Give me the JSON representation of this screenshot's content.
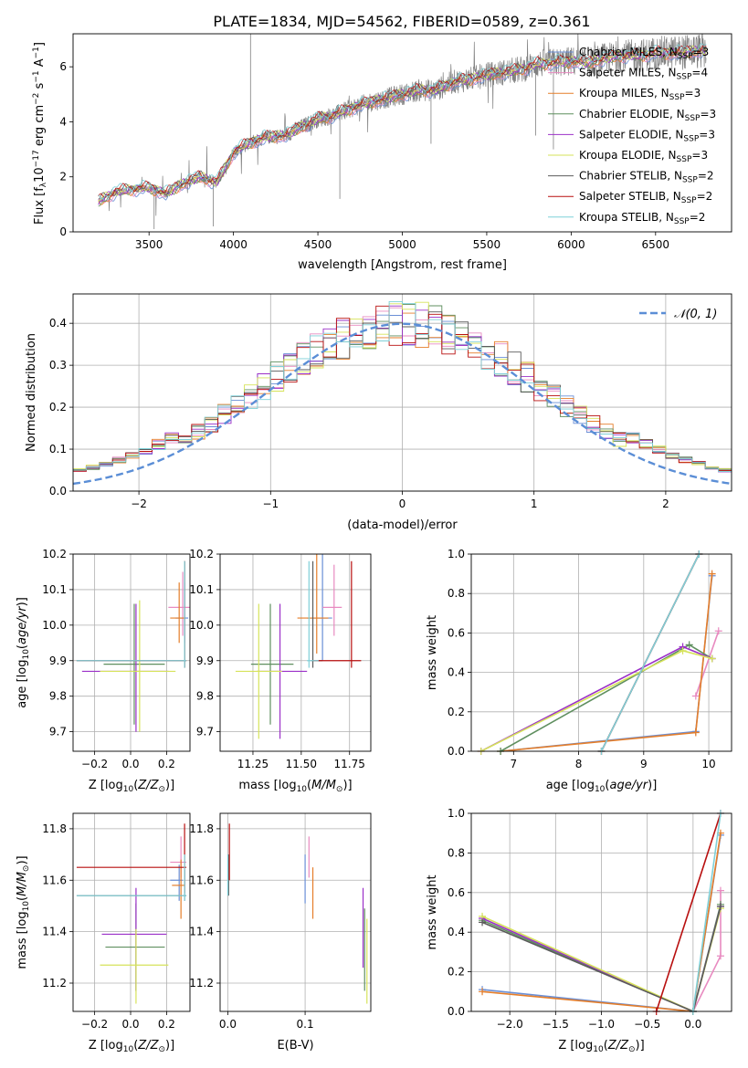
{
  "figure_title": "PLATE=1834, MJD=54562, FIBERID=0589, z=0.361",
  "colors": {
    "Chabrier MILES": "#6a8fd6",
    "Salpeter MILES": "#e88ac0",
    "Kroupa MILES": "#e57e2a",
    "Chabrier ELODIE": "#5f8f5f",
    "Salpeter ELODIE": "#9b30c8",
    "Kroupa ELODIE": "#d6e35a",
    "Chabrier STELIB": "#5b5b5b",
    "Salpeter STELIB": "#b80f0f",
    "Kroupa STELIB": "#7fd0d8",
    "data": "#808080",
    "gaussian": "#5b8ed6",
    "grid": "#b0b0b0"
  },
  "chart_data": [
    {
      "id": "spectrum",
      "type": "line",
      "xlabel": "wavelength [Angstrom, rest frame]",
      "ylabel": "Flux [f_λ10^-17 erg cm^-2 s^-1 A^-1]",
      "xlim": [
        3050,
        6950
      ],
      "ylim": [
        0,
        7.2
      ],
      "xticks": [
        3500,
        4000,
        4500,
        5000,
        5500,
        6000,
        6500
      ],
      "yticks": [
        0,
        2,
        4,
        6
      ],
      "legend_position": "top-right",
      "legend": [
        {
          "label": "Chabrier MILES, N",
          "sub": "SSP",
          "tail": "=3"
        },
        {
          "label": "Salpeter MILES, N",
          "sub": "SSP",
          "tail": "=4"
        },
        {
          "label": "Kroupa MILES, N",
          "sub": "SSP",
          "tail": "=3"
        },
        {
          "label": "Chabrier ELODIE, N",
          "sub": "SSP",
          "tail": "=3"
        },
        {
          "label": "Salpeter ELODIE, N",
          "sub": "SSP",
          "tail": "=3"
        },
        {
          "label": "Kroupa ELODIE, N",
          "sub": "SSP",
          "tail": "=3"
        },
        {
          "label": "Chabrier STELIB, N",
          "sub": "SSP",
          "tail": "=2"
        },
        {
          "label": "Salpeter STELIB, N",
          "sub": "SSP",
          "tail": "=2"
        },
        {
          "label": "Kroupa STELIB, N",
          "sub": "SSP",
          "tail": "=2"
        }
      ],
      "series_keys": [
        "Chabrier MILES",
        "Salpeter MILES",
        "Kroupa MILES",
        "Chabrier ELODIE",
        "Salpeter ELODIE",
        "Kroupa ELODIE",
        "Chabrier STELIB",
        "Salpeter STELIB",
        "Kroupa STELIB"
      ],
      "continuum": {
        "x": [
          3200,
          3300,
          3400,
          3500,
          3600,
          3700,
          3800,
          3900,
          3950,
          4000,
          4100,
          4200,
          4300,
          4400,
          4500,
          4600,
          4700,
          4800,
          4900,
          5000,
          5100,
          5200,
          5300,
          5400,
          5500,
          5600,
          5700,
          5800,
          5900,
          6000,
          6100,
          6200,
          6300,
          6400,
          6500,
          6600,
          6700,
          6800
        ],
        "y": [
          1.1,
          1.45,
          1.55,
          1.6,
          1.4,
          1.75,
          2.0,
          1.8,
          2.3,
          2.9,
          3.25,
          3.45,
          3.5,
          3.8,
          4.1,
          4.25,
          4.5,
          4.7,
          4.85,
          5.0,
          5.15,
          5.15,
          5.45,
          5.55,
          5.7,
          5.8,
          5.9,
          6.1,
          6.15,
          6.2,
          6.15,
          6.3,
          6.4,
          6.4,
          6.5,
          6.5,
          6.55,
          6.6
        ]
      },
      "data_x_range": [
        3200,
        6800
      ],
      "spikes": [
        {
          "x": 4101,
          "y": 7.2
        },
        {
          "x": 4630,
          "y": 1.2
        },
        {
          "x": 5170,
          "y": 3.2
        },
        {
          "x": 5790,
          "y": 3.5
        },
        {
          "x": 5895,
          "y": 3.0
        },
        {
          "x": 3530,
          "y": 0.1
        },
        {
          "x": 3880,
          "y": 0.2
        }
      ]
    },
    {
      "id": "residuals",
      "type": "histogram",
      "xlabel": "(data-model)/error",
      "ylabel": "Normed distribution",
      "xlim": [
        -2.5,
        2.5
      ],
      "ylim": [
        0,
        0.47
      ],
      "xticks": [
        -2,
        -1,
        0,
        1,
        2
      ],
      "yticks": [
        0.0,
        0.1,
        0.2,
        0.3,
        0.4
      ],
      "gaussian_label": "𝒩(0, 1)",
      "legend_position": "top-right",
      "bin_width": 0.1,
      "bin_start": -2.5
    },
    {
      "id": "Z-age",
      "type": "errorbar",
      "xlabel": "Z [log10(Z/Z⊙)]",
      "ylabel": "age [log10(age/yr)]",
      "xlim": [
        -0.32,
        0.33
      ],
      "ylim": [
        9.645,
        10.2
      ],
      "xticks": [
        -0.2,
        0.0,
        0.2
      ],
      "yticks": [
        9.7,
        9.8,
        9.9,
        10.0,
        10.1,
        10.2
      ],
      "points": [
        {
          "key": "Chabrier MILES",
          "x": 0.3,
          "xerr": [
            0.05,
            0.02
          ],
          "y": 10.02,
          "yerr": [
            0.07,
            0.1
          ]
        },
        {
          "key": "Salpeter MILES",
          "x": 0.29,
          "xerr": [
            0.08,
            0.04
          ],
          "y": 10.05,
          "yerr": [
            0.08,
            0.1
          ]
        },
        {
          "key": "Kroupa MILES",
          "x": 0.27,
          "xerr": [
            0.05,
            0.03
          ],
          "y": 10.02,
          "yerr": [
            0.07,
            0.1
          ]
        },
        {
          "key": "Chabrier ELODIE",
          "x": 0.02,
          "xerr": [
            0.17,
            0.17
          ],
          "y": 9.89,
          "yerr": [
            0.17,
            0.17
          ]
        },
        {
          "key": "Salpeter ELODIE",
          "x": 0.03,
          "xerr": [
            0.3,
            0.18
          ],
          "y": 9.87,
          "yerr": [
            0.17,
            0.19
          ]
        },
        {
          "key": "Kroupa ELODIE",
          "x": 0.05,
          "xerr": [
            0.22,
            0.2
          ],
          "y": 9.87,
          "yerr": [
            0.17,
            0.2
          ]
        },
        {
          "key": "Chabrier STELIB",
          "x": 0.3,
          "xerr": [
            0.6,
            0.01
          ],
          "y": 9.9,
          "yerr": [
            0.02,
            0.28
          ]
        },
        {
          "key": "Salpeter STELIB",
          "x": 0.3,
          "xerr": [
            0.6,
            0.01
          ],
          "y": 9.9,
          "yerr": [
            0.02,
            0.28
          ]
        },
        {
          "key": "Kroupa STELIB",
          "x": 0.3,
          "xerr": [
            0.6,
            0.01
          ],
          "y": 9.9,
          "yerr": [
            0.02,
            0.28
          ]
        }
      ]
    },
    {
      "id": "mass-age",
      "type": "errorbar",
      "xlabel": "mass [log10(M/M⊙)]",
      "ylabel": "",
      "xlim": [
        11.08,
        11.86
      ],
      "ylim": [
        9.645,
        10.2
      ],
      "xticks": [
        11.25,
        11.5,
        11.75
      ],
      "yticks": [
        9.7,
        9.8,
        9.9,
        10.0,
        10.1,
        10.2
      ],
      "points": [
        {
          "key": "Chabrier MILES",
          "x": 11.61,
          "xerr": [
            0.08,
            0.05
          ],
          "y": 10.02,
          "yerr": [
            0.12,
            0.2
          ]
        },
        {
          "key": "Salpeter MILES",
          "x": 11.67,
          "xerr": [
            0.06,
            0.04
          ],
          "y": 10.05,
          "yerr": [
            0.08,
            0.12
          ]
        },
        {
          "key": "Kroupa MILES",
          "x": 11.58,
          "xerr": [
            0.1,
            0.06
          ],
          "y": 10.02,
          "yerr": [
            0.1,
            0.18
          ]
        },
        {
          "key": "Chabrier ELODIE",
          "x": 11.34,
          "xerr": [
            0.1,
            0.12
          ],
          "y": 9.89,
          "yerr": [
            0.17,
            0.17
          ]
        },
        {
          "key": "Salpeter ELODIE",
          "x": 11.39,
          "xerr": [
            0.12,
            0.14
          ],
          "y": 9.87,
          "yerr": [
            0.19,
            0.19
          ]
        },
        {
          "key": "Kroupa ELODIE",
          "x": 11.28,
          "xerr": [
            0.12,
            0.12
          ],
          "y": 9.87,
          "yerr": [
            0.19,
            0.19
          ]
        },
        {
          "key": "Chabrier STELIB",
          "x": 11.56,
          "xerr": [
            0.01,
            0.05
          ],
          "y": 9.9,
          "yerr": [
            0.02,
            0.28
          ]
        },
        {
          "key": "Salpeter STELIB",
          "x": 11.76,
          "xerr": [
            0.2,
            0.05
          ],
          "y": 9.9,
          "yerr": [
            0.02,
            0.28
          ]
        },
        {
          "key": "Kroupa STELIB",
          "x": 11.54,
          "xerr": [
            0.01,
            0.05
          ],
          "y": 9.9,
          "yerr": [
            0.02,
            0.28
          ]
        }
      ]
    },
    {
      "id": "age-weight",
      "type": "line",
      "xlabel": "age [log10(age/yr)]",
      "ylabel": "mass weight",
      "xlim": [
        6.35,
        10.35
      ],
      "ylim": [
        0,
        1
      ],
      "xticks": [
        7,
        8,
        9,
        10
      ],
      "yticks": [
        0.0,
        0.2,
        0.4,
        0.6,
        0.8,
        1.0
      ],
      "series": [
        {
          "key": "Chabrier MILES",
          "x": [
            6.8,
            9.8,
            10.05
          ],
          "y": [
            0.0,
            0.1,
            0.89
          ]
        },
        {
          "key": "Salpeter MILES",
          "x": [
            9.8,
            10.15
          ],
          "y": [
            0.28,
            0.61
          ]
        },
        {
          "key": "Kroupa MILES",
          "x": [
            6.8,
            9.8,
            10.05
          ],
          "y": [
            0.0,
            0.095,
            0.9
          ]
        },
        {
          "key": "Chabrier ELODIE",
          "x": [
            6.8,
            9.7,
            10.05
          ],
          "y": [
            0.0,
            0.54,
            0.47
          ]
        },
        {
          "key": "Salpeter ELODIE",
          "x": [
            6.5,
            9.6,
            10.05
          ],
          "y": [
            0.0,
            0.53,
            0.47
          ]
        },
        {
          "key": "Kroupa ELODIE",
          "x": [
            6.5,
            9.6,
            10.05
          ],
          "y": [
            0.0,
            0.51,
            0.47
          ]
        },
        {
          "key": "Chabrier STELIB",
          "x": [
            8.35,
            9.85
          ],
          "y": [
            0.0,
            1.0
          ]
        },
        {
          "key": "Salpeter STELIB",
          "x": [
            8.35,
            9.85
          ],
          "y": [
            0.0,
            1.0
          ]
        },
        {
          "key": "Kroupa STELIB",
          "x": [
            8.35,
            9.85
          ],
          "y": [
            0.0,
            1.0
          ]
        }
      ]
    },
    {
      "id": "Z-mass",
      "type": "errorbar",
      "xlabel": "Z [log10(Z/Z⊙)]",
      "ylabel": "mass [log10(M/M⊙)]",
      "xlim": [
        -0.32,
        0.33
      ],
      "ylim": [
        11.09,
        11.86
      ],
      "xticks": [
        -0.2,
        0.0,
        0.2
      ],
      "yticks": [
        11.2,
        11.4,
        11.6,
        11.8
      ],
      "points": [
        {
          "key": "Chabrier MILES",
          "x": 0.27,
          "xerr": [
            0.05,
            0.02
          ],
          "y": 11.6,
          "yerr": [
            0.08,
            0.06
          ]
        },
        {
          "key": "Salpeter MILES",
          "x": 0.28,
          "xerr": [
            0.06,
            0.03
          ],
          "y": 11.67,
          "yerr": [
            0.06,
            0.1
          ]
        },
        {
          "key": "Kroupa MILES",
          "x": 0.28,
          "xerr": [
            0.05,
            0.02
          ],
          "y": 11.58,
          "yerr": [
            0.13,
            0.1
          ]
        },
        {
          "key": "Chabrier ELODIE",
          "x": 0.03,
          "xerr": [
            0.17,
            0.16
          ],
          "y": 11.34,
          "yerr": [
            0.17,
            0.17
          ]
        },
        {
          "key": "Salpeter ELODIE",
          "x": 0.03,
          "xerr": [
            0.19,
            0.17
          ],
          "y": 11.39,
          "yerr": [
            0.22,
            0.18
          ]
        },
        {
          "key": "Kroupa ELODIE",
          "x": 0.03,
          "xerr": [
            0.2,
            0.18
          ],
          "y": 11.27,
          "yerr": [
            0.15,
            0.14
          ]
        },
        {
          "key": "Chabrier STELIB",
          "x": 0.3,
          "xerr": [
            0.6,
            0.01
          ],
          "y": 11.54,
          "yerr": [
            0.02,
            0.1
          ]
        },
        {
          "key": "Salpeter STELIB",
          "x": 0.3,
          "xerr": [
            0.6,
            0.01
          ],
          "y": 11.65,
          "yerr": [
            0.1,
            0.17
          ]
        },
        {
          "key": "Kroupa STELIB",
          "x": 0.3,
          "xerr": [
            0.6,
            0.01
          ],
          "y": 11.54,
          "yerr": [
            0.02,
            0.16
          ]
        }
      ]
    },
    {
      "id": "ebv-mass",
      "type": "errorbar",
      "xlabel": "E(B-V)",
      "ylabel": "",
      "xlim": [
        -0.01,
        0.185
      ],
      "ylim": [
        11.09,
        11.86
      ],
      "xticks": [
        0.0,
        0.1
      ],
      "yticks": [
        11.2,
        11.4,
        11.6,
        11.8
      ],
      "points": [
        {
          "key": "Chabrier MILES",
          "x": 0.1,
          "xerr": [
            0,
            0
          ],
          "y": 11.6,
          "yerr": [
            0.09,
            0.1
          ]
        },
        {
          "key": "Salpeter MILES",
          "x": 0.105,
          "xerr": [
            0,
            0
          ],
          "y": 11.67,
          "yerr": [
            0.06,
            0.1
          ]
        },
        {
          "key": "Kroupa MILES",
          "x": 0.11,
          "xerr": [
            0,
            0
          ],
          "y": 11.58,
          "yerr": [
            0.13,
            0.07
          ]
        },
        {
          "key": "Chabrier ELODIE",
          "x": 0.177,
          "xerr": [
            0,
            0
          ],
          "y": 11.34,
          "yerr": [
            0.17,
            0.15
          ]
        },
        {
          "key": "Salpeter ELODIE",
          "x": 0.175,
          "xerr": [
            0,
            0
          ],
          "y": 11.39,
          "yerr": [
            0.13,
            0.18
          ]
        },
        {
          "key": "Kroupa ELODIE",
          "x": 0.18,
          "xerr": [
            0,
            0
          ],
          "y": 11.27,
          "yerr": [
            0.15,
            0.18
          ]
        },
        {
          "key": "Chabrier STELIB",
          "x": 0.001,
          "xerr": [
            0,
            0
          ],
          "y": 11.6,
          "yerr": [
            0.06,
            0.1
          ]
        },
        {
          "key": "Salpeter STELIB",
          "x": 0.002,
          "xerr": [
            0,
            0
          ],
          "y": 11.7,
          "yerr": [
            0.1,
            0.12
          ]
        },
        {
          "key": "Kroupa STELIB",
          "x": 0.0,
          "xerr": [
            0,
            0
          ],
          "y": 11.6,
          "yerr": [
            0.06,
            0.1
          ]
        }
      ]
    },
    {
      "id": "Z-weight",
      "type": "line",
      "xlabel": "Z [log10(Z/Z⊙)]",
      "ylabel": "mass weight",
      "xlim": [
        -2.42,
        0.42
      ],
      "ylim": [
        0,
        1
      ],
      "xticks": [
        -2.0,
        -1.5,
        -1.0,
        -0.5,
        0.0
      ],
      "yticks": [
        0.0,
        0.2,
        0.4,
        0.6,
        0.8,
        1.0
      ],
      "series": [
        {
          "key": "Chabrier MILES",
          "x": [
            -2.3,
            0.0,
            0.3
          ],
          "y": [
            0.11,
            0.0,
            0.89
          ]
        },
        {
          "key": "Salpeter MILES",
          "x": [
            0.0,
            0.3,
            0.3
          ],
          "y": [
            0.0,
            0.28,
            0.61
          ]
        },
        {
          "key": "Kroupa MILES",
          "x": [
            -2.3,
            0.0,
            0.3
          ],
          "y": [
            0.1,
            0.0,
            0.9
          ]
        },
        {
          "key": "Chabrier ELODIE",
          "x": [
            -2.3,
            0.0,
            0.3
          ],
          "y": [
            0.46,
            0.0,
            0.54
          ]
        },
        {
          "key": "Salpeter ELODIE",
          "x": [
            -2.3,
            0.0,
            0.3
          ],
          "y": [
            0.47,
            0.0,
            0.53
          ]
        },
        {
          "key": "Kroupa ELODIE",
          "x": [
            -2.3,
            0.0,
            0.3
          ],
          "y": [
            0.48,
            0.0,
            0.52
          ]
        },
        {
          "key": "Chabrier STELIB",
          "x": [
            -2.3,
            0.0,
            0.3
          ],
          "y": [
            0.45,
            0.0,
            0.53
          ]
        },
        {
          "key": "Salpeter STELIB",
          "x": [
            -0.4,
            0.3
          ],
          "y": [
            0.0,
            1.0
          ]
        },
        {
          "key": "Kroupa STELIB",
          "x": [
            0.0,
            0.3
          ],
          "y": [
            0.0,
            1.0
          ]
        }
      ]
    }
  ]
}
